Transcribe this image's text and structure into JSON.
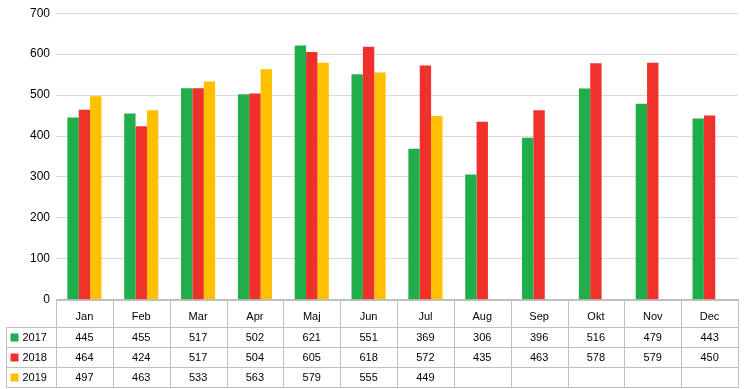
{
  "chart_data": {
    "type": "bar",
    "categories": [
      "Jan",
      "Feb",
      "Mar",
      "Apr",
      "Maj",
      "Jun",
      "Jul",
      "Aug",
      "Sep",
      "Okt",
      "Nov",
      "Dec"
    ],
    "series": [
      {
        "name": "2017",
        "color": "#1fae4b",
        "values": [
          445,
          455,
          517,
          502,
          621,
          551,
          369,
          306,
          396,
          516,
          479,
          443
        ]
      },
      {
        "name": "2018",
        "color": "#f0302a",
        "values": [
          464,
          424,
          517,
          504,
          605,
          618,
          572,
          435,
          463,
          578,
          579,
          450
        ]
      },
      {
        "name": "2019",
        "color": "#ffc000",
        "values": [
          497,
          463,
          533,
          563,
          579,
          555,
          449,
          null,
          null,
          null,
          null,
          null
        ]
      }
    ],
    "ylim": [
      0,
      700
    ],
    "yticks": [
      0,
      100,
      200,
      300,
      400,
      500,
      600,
      700
    ],
    "grid": true
  }
}
